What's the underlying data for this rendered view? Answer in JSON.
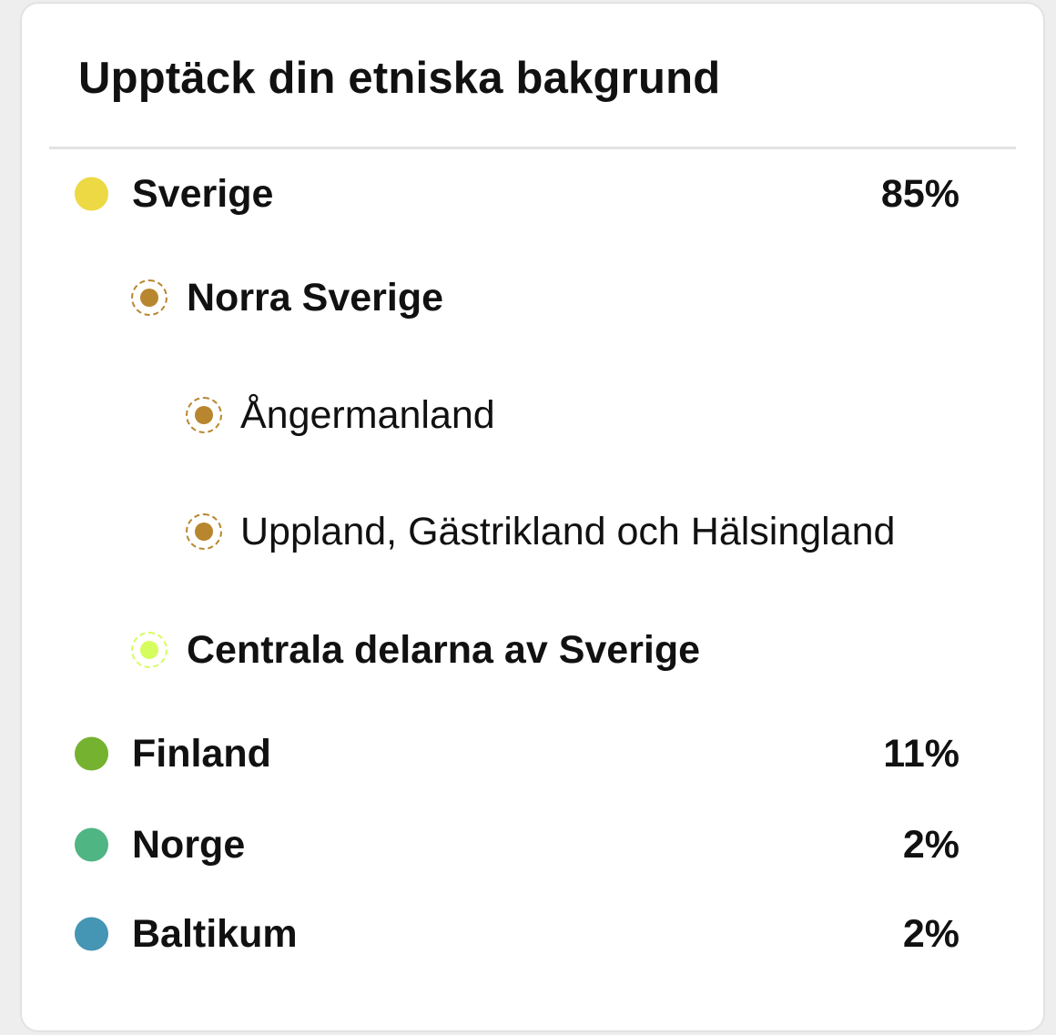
{
  "card": {
    "title": "Upptäck din etniska bakgrund"
  },
  "regions": [
    {
      "label": "Sverige",
      "percent": "85%",
      "color": "#ecd943",
      "level": 0
    },
    {
      "label": "Norra Sverige",
      "color": "#b8862f",
      "level": 1
    },
    {
      "label": "Ångermanland",
      "color": "#b8862f",
      "level": 2
    },
    {
      "label": "Uppland, Gästrikland och Hälsingland",
      "color": "#b8862f",
      "level": 2
    },
    {
      "label": "Centrala delarna av Sverige",
      "color": "#d6fd5e",
      "level": 1
    },
    {
      "label": "Finland",
      "percent": "11%",
      "color": "#75b22f",
      "level": 0
    },
    {
      "label": "Norge",
      "percent": "2%",
      "color": "#4fb583",
      "level": 0
    },
    {
      "label": "Baltikum",
      "percent": "2%",
      "color": "#4595b4",
      "level": 0
    }
  ]
}
